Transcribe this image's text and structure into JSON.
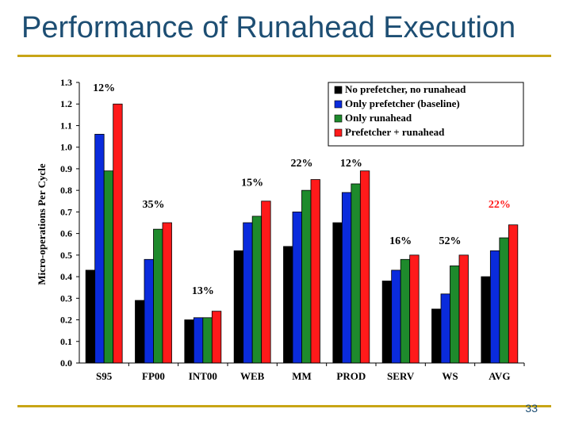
{
  "slide": {
    "title": "Performance of Runahead Execution",
    "page_number": "33"
  },
  "chart_data": {
    "type": "bar",
    "ylabel": "Micro-operations Per Cycle",
    "xlabel": "",
    "ylim": [
      0.0,
      1.3
    ],
    "yticks": [
      "0.0",
      "0.1",
      "0.2",
      "0.3",
      "0.4",
      "0.5",
      "0.6",
      "0.7",
      "0.8",
      "0.9",
      "1.0",
      "1.1",
      "1.2",
      "1.3"
    ],
    "categories": [
      "S95",
      "FP00",
      "INT00",
      "WEB",
      "MM",
      "PROD",
      "SERV",
      "WS",
      "AVG"
    ],
    "series": [
      {
        "name": "No prefetcher, no runahead",
        "color": "#000000",
        "values": [
          0.43,
          0.29,
          0.2,
          0.52,
          0.54,
          0.65,
          0.38,
          0.25,
          0.4
        ]
      },
      {
        "name": "Only prefetcher (baseline)",
        "color": "#0a2bdc",
        "values": [
          1.06,
          0.48,
          0.21,
          0.65,
          0.7,
          0.79,
          0.43,
          0.32,
          0.52
        ]
      },
      {
        "name": "Only runahead",
        "color": "#1e8a2c",
        "values": [
          0.89,
          0.62,
          0.21,
          0.68,
          0.8,
          0.83,
          0.48,
          0.45,
          0.58
        ]
      },
      {
        "name": "Prefetcher + runahead",
        "color": "#ff1a1a",
        "values": [
          1.2,
          0.65,
          0.24,
          0.75,
          0.85,
          0.89,
          0.5,
          0.5,
          0.64
        ]
      }
    ],
    "annotations": [
      {
        "category": "S95",
        "text": "12%",
        "y": 1.26,
        "color": "#000000"
      },
      {
        "category": "FP00",
        "text": "35%",
        "y": 0.72,
        "color": "#000000"
      },
      {
        "category": "INT00",
        "text": "13%",
        "y": 0.32,
        "color": "#000000"
      },
      {
        "category": "WEB",
        "text": "15%",
        "y": 0.82,
        "color": "#000000"
      },
      {
        "category": "MM",
        "text": "22%",
        "y": 0.91,
        "color": "#000000"
      },
      {
        "category": "PROD",
        "text": "12%",
        "y": 0.91,
        "color": "#000000"
      },
      {
        "category": "SERV",
        "text": "16%",
        "y": 0.55,
        "color": "#000000"
      },
      {
        "category": "WS",
        "text": "52%",
        "y": 0.55,
        "color": "#000000"
      },
      {
        "category": "AVG",
        "text": "22%",
        "y": 0.72,
        "color": "#ff1a1a"
      }
    ],
    "legend": "top-right",
    "grid": false
  }
}
